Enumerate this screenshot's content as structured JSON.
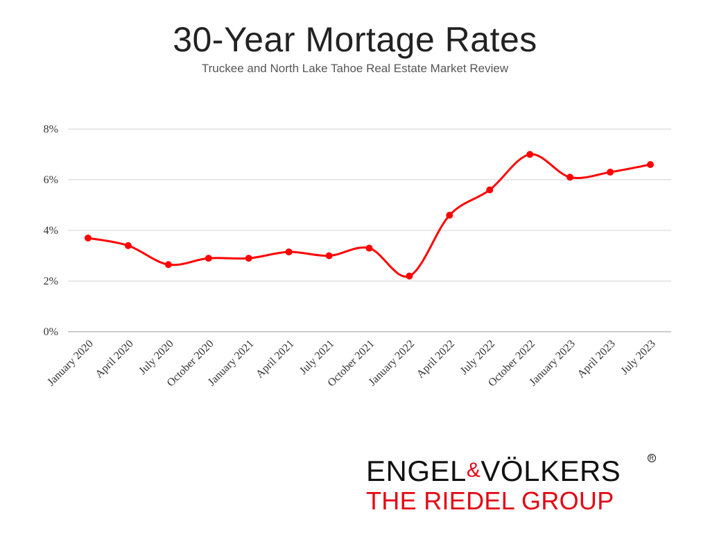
{
  "header": {
    "title": "30-Year Mortage Rates",
    "subtitle": "Truckee and North Lake Tahoe Real Estate Market Review"
  },
  "chart_data": {
    "type": "line",
    "categories": [
      "January 2020",
      "April 2020",
      "July 2020",
      "October 2020",
      "January 2021",
      "April 2021",
      "July 2021",
      "October 2021",
      "January 2022",
      "April 2022",
      "July 2022",
      "October 2022",
      "January 2023",
      "April 2023",
      "July 2023"
    ],
    "series": [
      {
        "values": [
          3.7,
          3.4,
          2.65,
          2.9,
          2.9,
          3.15,
          3.0,
          3.3,
          2.2,
          4.6,
          5.6,
          7.0,
          6.1,
          6.3,
          6.6
        ],
        "color": "#ff0000"
      }
    ],
    "yticks": [
      "0%",
      "2%",
      "4%",
      "6%",
      "8%"
    ],
    "ylim": [
      0,
      8
    ],
    "grid": true,
    "line_color": "#ff0000"
  },
  "logo": {
    "brand_part1": "ENGEL",
    "brand_amp": "&",
    "brand_part2": "VÖLKERS",
    "registered": "R",
    "group": "THE RIEDEL GROUP",
    "brand_red": "#e30613"
  }
}
